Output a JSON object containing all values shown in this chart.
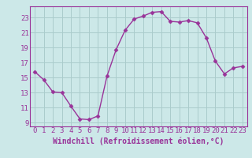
{
  "x": [
    0,
    1,
    2,
    3,
    4,
    5,
    6,
    7,
    8,
    9,
    10,
    11,
    12,
    13,
    14,
    15,
    16,
    17,
    18,
    19,
    20,
    21,
    22,
    23
  ],
  "y": [
    15.8,
    14.7,
    13.1,
    13.0,
    11.2,
    9.5,
    9.4,
    9.9,
    15.2,
    18.7,
    21.3,
    22.8,
    23.2,
    23.7,
    23.8,
    22.5,
    22.4,
    22.6,
    22.3,
    20.3,
    17.2,
    15.5,
    16.3,
    16.5
  ],
  "line_color": "#993399",
  "marker": "D",
  "markersize": 2.5,
  "linewidth": 1.0,
  "bg_color": "#cce8e8",
  "grid_color": "#aacccc",
  "xlabel": "Windchill (Refroidissement éolien,°C)",
  "xlabel_fontsize": 7,
  "yticks": [
    9,
    11,
    13,
    15,
    17,
    19,
    21,
    23
  ],
  "xticks": [
    0,
    1,
    2,
    3,
    4,
    5,
    6,
    7,
    8,
    9,
    10,
    11,
    12,
    13,
    14,
    15,
    16,
    17,
    18,
    19,
    20,
    21,
    22,
    23
  ],
  "xlim": [
    -0.5,
    23.5
  ],
  "ylim": [
    8.5,
    24.5
  ],
  "tick_fontsize": 6.5,
  "tick_color": "#993399",
  "spine_color": "#993399"
}
